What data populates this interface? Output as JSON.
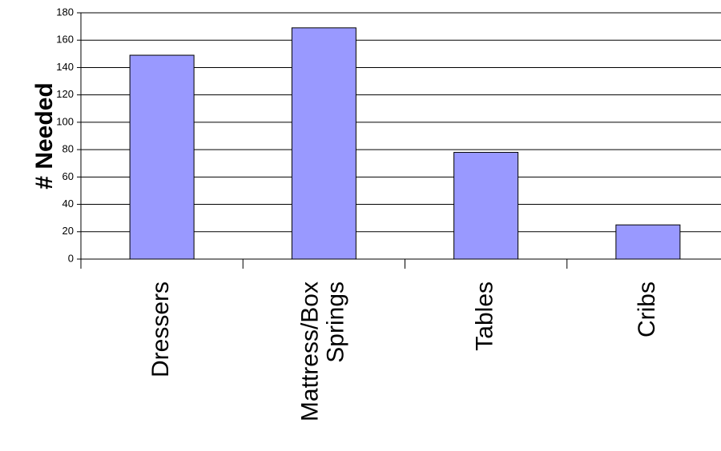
{
  "chart_data": {
    "type": "bar",
    "title": "",
    "xlabel": "",
    "ylabel": "# Needed",
    "ylim": [
      0,
      180
    ],
    "yticks": [
      0,
      20,
      40,
      60,
      80,
      100,
      120,
      140,
      160,
      180
    ],
    "grid": true,
    "categories": [
      [
        "Dressers"
      ],
      [
        "Mattress/Box",
        "Springs"
      ],
      [
        "Tables"
      ],
      [
        "Cribs"
      ]
    ],
    "values": [
      149,
      169,
      78,
      25
    ],
    "bar_color": "#9999ff",
    "bar_stroke": "#000000"
  }
}
